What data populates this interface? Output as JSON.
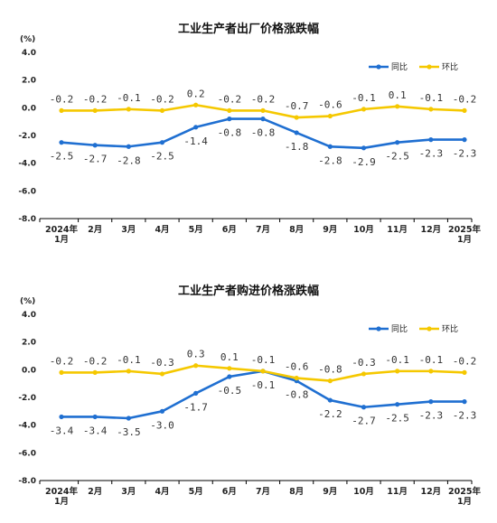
{
  "colors": {
    "yoy": "#1f6fd1",
    "mom": "#f5c800",
    "axis": "#000000"
  },
  "chart_data": [
    {
      "type": "line",
      "title": "工业生产者出厂价格涨跌幅",
      "unit": "(%)",
      "ylim": [
        -8.0,
        4.0
      ],
      "yticks": [
        "4.0",
        "2.0",
        "0.0",
        "-2.0",
        "-4.0",
        "-6.0",
        "-8.0"
      ],
      "categories": [
        [
          "2024年",
          "1月"
        ],
        [
          "2月"
        ],
        [
          "3月"
        ],
        [
          "4月"
        ],
        [
          "5月"
        ],
        [
          "6月"
        ],
        [
          "7月"
        ],
        [
          "8月"
        ],
        [
          "9月"
        ],
        [
          "10月"
        ],
        [
          "11月"
        ],
        [
          "12月"
        ],
        [
          "2025年",
          "1月"
        ]
      ],
      "legend_position": "top-right",
      "series": [
        {
          "name": "同比",
          "key": "yoy",
          "values": [
            -2.5,
            -2.7,
            -2.8,
            -2.5,
            -1.4,
            -0.8,
            -0.8,
            -1.8,
            -2.8,
            -2.9,
            -2.5,
            -2.3,
            -2.3
          ],
          "labels": [
            "-2.5",
            "-2.7",
            "-2.8",
            "-2.5",
            "-1.4",
            "-0.8",
            "-0.8",
            "-1.8",
            "-2.8",
            "-2.9",
            "-2.5",
            "-2.3",
            "-2.3"
          ]
        },
        {
          "name": "环比",
          "key": "mom",
          "values": [
            -0.2,
            -0.2,
            -0.1,
            -0.2,
            0.2,
            -0.2,
            -0.2,
            -0.7,
            -0.6,
            -0.1,
            0.1,
            -0.1,
            -0.2
          ],
          "labels": [
            "-0.2",
            "-0.2",
            "-0.1",
            "-0.2",
            "0.2",
            "-0.2",
            "-0.2",
            "-0.7",
            "-0.6",
            "-0.1",
            "0.1",
            "-0.1",
            "-0.2"
          ]
        }
      ]
    },
    {
      "type": "line",
      "title": "工业生产者购进价格涨跌幅",
      "unit": "(%)",
      "ylim": [
        -8.0,
        4.0
      ],
      "yticks": [
        "4.0",
        "2.0",
        "0.0",
        "-2.0",
        "-4.0",
        "-6.0",
        "-8.0"
      ],
      "categories": [
        [
          "2024年",
          "1月"
        ],
        [
          "2月"
        ],
        [
          "3月"
        ],
        [
          "4月"
        ],
        [
          "5月"
        ],
        [
          "6月"
        ],
        [
          "7月"
        ],
        [
          "8月"
        ],
        [
          "9月"
        ],
        [
          "10月"
        ],
        [
          "11月"
        ],
        [
          "12月"
        ],
        [
          "2025年",
          "1月"
        ]
      ],
      "legend_position": "top-right",
      "series": [
        {
          "name": "同比",
          "key": "yoy",
          "values": [
            -3.4,
            -3.4,
            -3.5,
            -3.0,
            -1.7,
            -0.5,
            -0.1,
            -0.8,
            -2.2,
            -2.7,
            -2.5,
            -2.3,
            -2.3
          ],
          "labels": [
            "-3.4",
            "-3.4",
            "-3.5",
            "-3.0",
            "-1.7",
            "-0.5",
            "-0.1",
            "-0.8",
            "-2.2",
            "-2.7",
            "-2.5",
            "-2.3",
            "-2.3"
          ]
        },
        {
          "name": "环比",
          "key": "mom",
          "values": [
            -0.2,
            -0.2,
            -0.1,
            -0.3,
            0.3,
            0.1,
            -0.1,
            -0.6,
            -0.8,
            -0.3,
            -0.1,
            -0.1,
            -0.2
          ],
          "labels": [
            "-0.2",
            "-0.2",
            "-0.1",
            "-0.3",
            "0.3",
            "0.1",
            "-0.1",
            "-0.6",
            "-0.8",
            "-0.3",
            "-0.1",
            "-0.1",
            "-0.2"
          ]
        }
      ]
    }
  ]
}
